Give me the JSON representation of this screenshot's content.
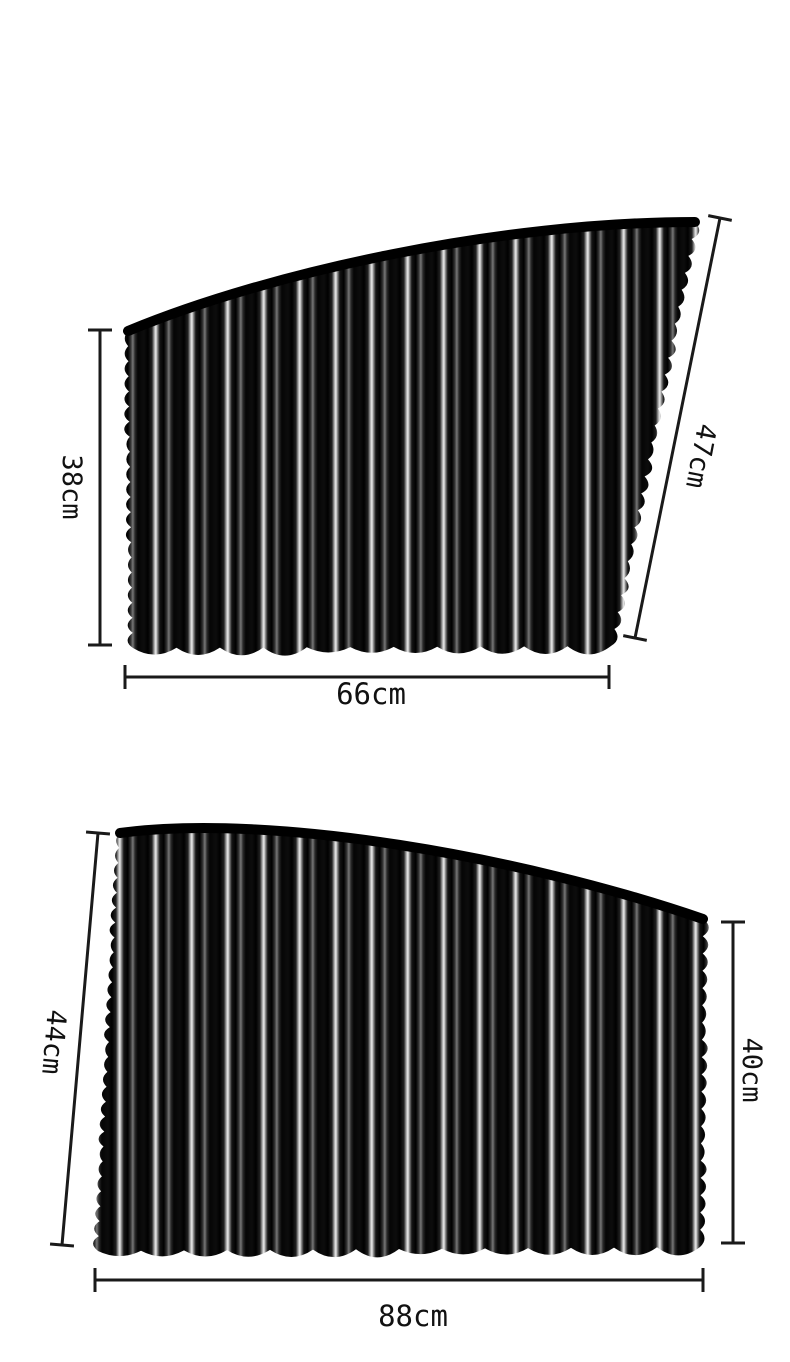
{
  "diagram": {
    "description": "Pleated black car-window sunshade curtains shown with their dimensions",
    "top_curtain": {
      "left_height": "38cm",
      "slant_height": "47cm",
      "bottom_width": "66cm"
    },
    "bottom_curtain": {
      "slant_height": "44cm",
      "right_height": "40cm",
      "bottom_width": "88cm"
    }
  },
  "colors": {
    "background": "#ffffff",
    "dimension_line": "#1a1a1a",
    "label_text": "#111111",
    "curtain_base": "#000000",
    "pleat_highlight": "#eeeeee"
  }
}
